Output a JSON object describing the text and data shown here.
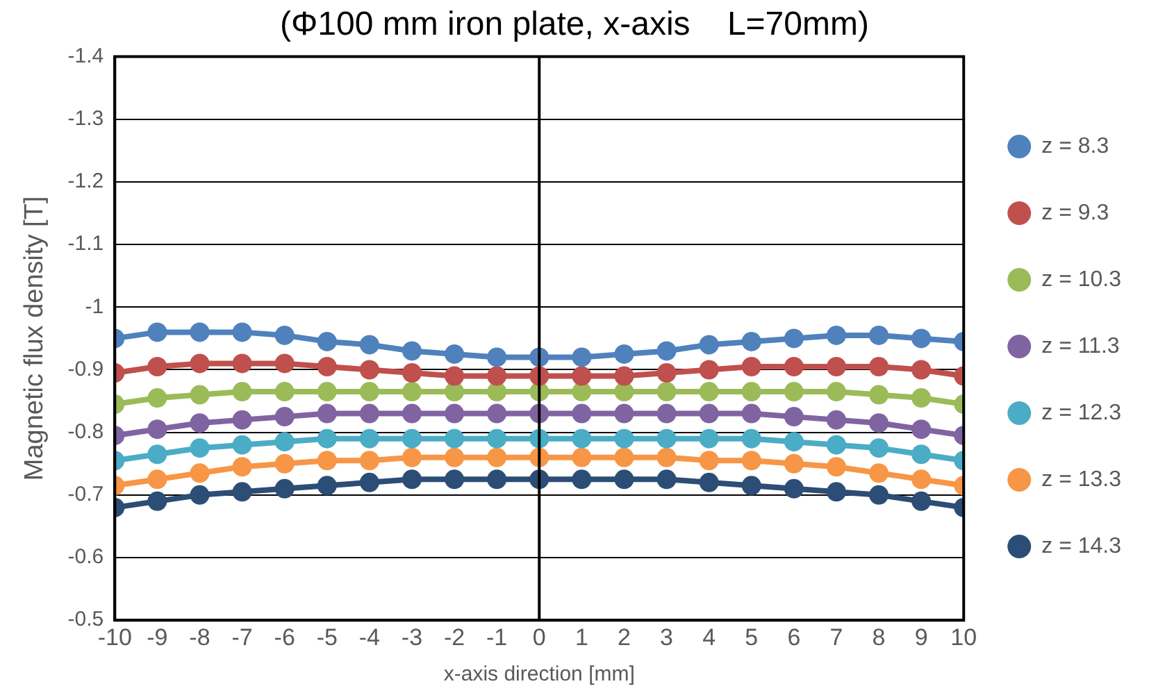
{
  "chart_data": {
    "type": "line",
    "title": "(Φ100 mm iron plate, x-axis    L=70mm)",
    "xlabel": "x-axis direction [mm]",
    "ylabel": "Magnetic flux density [T]",
    "x": [
      -10,
      -9,
      -8,
      -7,
      -6,
      -5,
      -4,
      -3,
      -2,
      -1,
      0,
      1,
      2,
      3,
      4,
      5,
      6,
      7,
      8,
      9,
      10
    ],
    "xlim": [
      -10,
      10
    ],
    "xticks": [
      -10,
      -9,
      -8,
      -7,
      -6,
      -5,
      -4,
      -3,
      -2,
      -1,
      0,
      1,
      2,
      3,
      4,
      5,
      6,
      7,
      8,
      9,
      10
    ],
    "ylim": [
      -0.5,
      -1.4
    ],
    "yticks": [
      -1.4,
      -1.3,
      -1.2,
      -1.1,
      -1,
      -0.9,
      -0.8,
      -0.7,
      -0.6,
      -0.5
    ],
    "grid": "y",
    "legend": "right",
    "marker": "circle",
    "line_style": "solid",
    "ref_lines": [
      {
        "axis": "x",
        "value": 0,
        "color": "#000000"
      }
    ],
    "series": [
      {
        "name": "z = 8.3",
        "color": "#4f81bd",
        "values": [
          -0.95,
          -0.96,
          -0.96,
          -0.96,
          -0.955,
          -0.945,
          -0.94,
          -0.93,
          -0.925,
          -0.92,
          -0.92,
          -0.92,
          -0.925,
          -0.93,
          -0.94,
          -0.945,
          -0.95,
          -0.955,
          -0.955,
          -0.95,
          -0.945
        ]
      },
      {
        "name": "z = 9.3",
        "color": "#c0504d",
        "values": [
          -0.895,
          -0.905,
          -0.91,
          -0.91,
          -0.91,
          -0.905,
          -0.9,
          -0.895,
          -0.89,
          -0.89,
          -0.89,
          -0.89,
          -0.89,
          -0.895,
          -0.9,
          -0.905,
          -0.905,
          -0.905,
          -0.905,
          -0.9,
          -0.89
        ]
      },
      {
        "name": "z = 10.3",
        "color": "#9bbb59",
        "values": [
          -0.845,
          -0.855,
          -0.86,
          -0.865,
          -0.865,
          -0.865,
          -0.865,
          -0.865,
          -0.865,
          -0.865,
          -0.865,
          -0.865,
          -0.865,
          -0.865,
          -0.865,
          -0.865,
          -0.865,
          -0.865,
          -0.86,
          -0.855,
          -0.845
        ]
      },
      {
        "name": "z = 11.3",
        "color": "#8064a2",
        "values": [
          -0.795,
          -0.805,
          -0.815,
          -0.82,
          -0.825,
          -0.83,
          -0.83,
          -0.83,
          -0.83,
          -0.83,
          -0.83,
          -0.83,
          -0.83,
          -0.83,
          -0.83,
          -0.83,
          -0.825,
          -0.82,
          -0.815,
          -0.805,
          -0.795
        ]
      },
      {
        "name": "z = 12.3",
        "color": "#4bacc6",
        "values": [
          -0.755,
          -0.765,
          -0.775,
          -0.78,
          -0.785,
          -0.79,
          -0.79,
          -0.79,
          -0.79,
          -0.79,
          -0.79,
          -0.79,
          -0.79,
          -0.79,
          -0.79,
          -0.79,
          -0.785,
          -0.78,
          -0.775,
          -0.765,
          -0.755
        ]
      },
      {
        "name": "z = 13.3",
        "color": "#f79646",
        "values": [
          -0.715,
          -0.725,
          -0.735,
          -0.745,
          -0.75,
          -0.755,
          -0.755,
          -0.76,
          -0.76,
          -0.76,
          -0.76,
          -0.76,
          -0.76,
          -0.76,
          -0.755,
          -0.755,
          -0.75,
          -0.745,
          -0.735,
          -0.725,
          -0.715
        ]
      },
      {
        "name": "z = 14.3",
        "color": "#2c4d75",
        "values": [
          -0.68,
          -0.69,
          -0.7,
          -0.705,
          -0.71,
          -0.715,
          -0.72,
          -0.725,
          -0.725,
          -0.725,
          -0.725,
          -0.725,
          -0.725,
          -0.725,
          -0.72,
          -0.715,
          -0.71,
          -0.705,
          -0.7,
          -0.69,
          -0.68
        ]
      }
    ]
  }
}
